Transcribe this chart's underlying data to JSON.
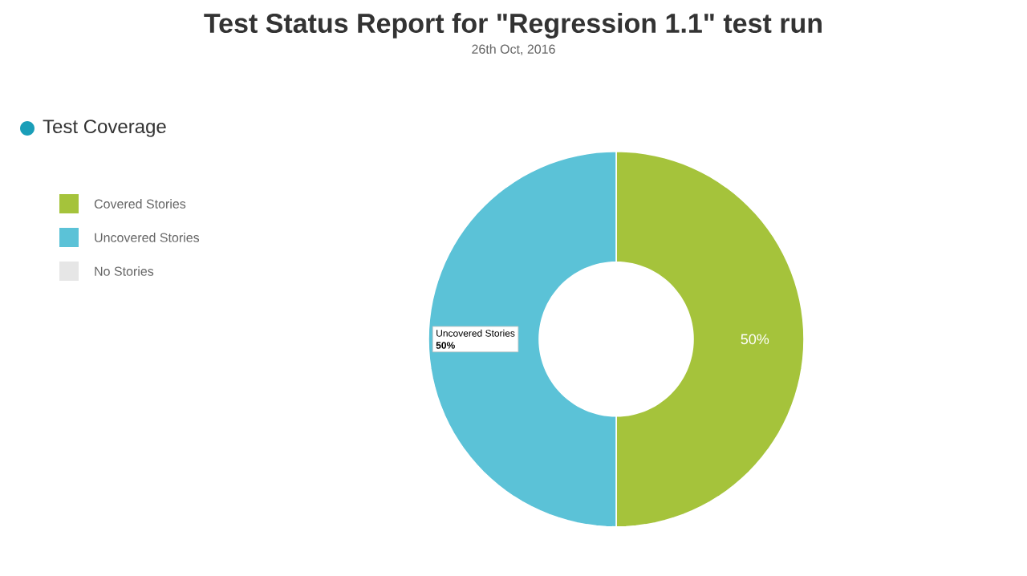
{
  "chart_data": {
    "type": "donut",
    "title": "Test Status Report for \"Regression 1.1\" test run",
    "subtitle": "26th Oct, 2016",
    "annotations": [
      "Test Coverage"
    ],
    "categories": [
      "Covered Stories",
      "Uncovered Stories",
      "No Stories"
    ],
    "values": [
      50,
      50,
      0
    ],
    "colors": [
      "#a5c33b",
      "#5bc2d7",
      "#e6e6e6"
    ],
    "value_labels": [
      "50%",
      "50%",
      null
    ],
    "legend": "top left"
  }
}
